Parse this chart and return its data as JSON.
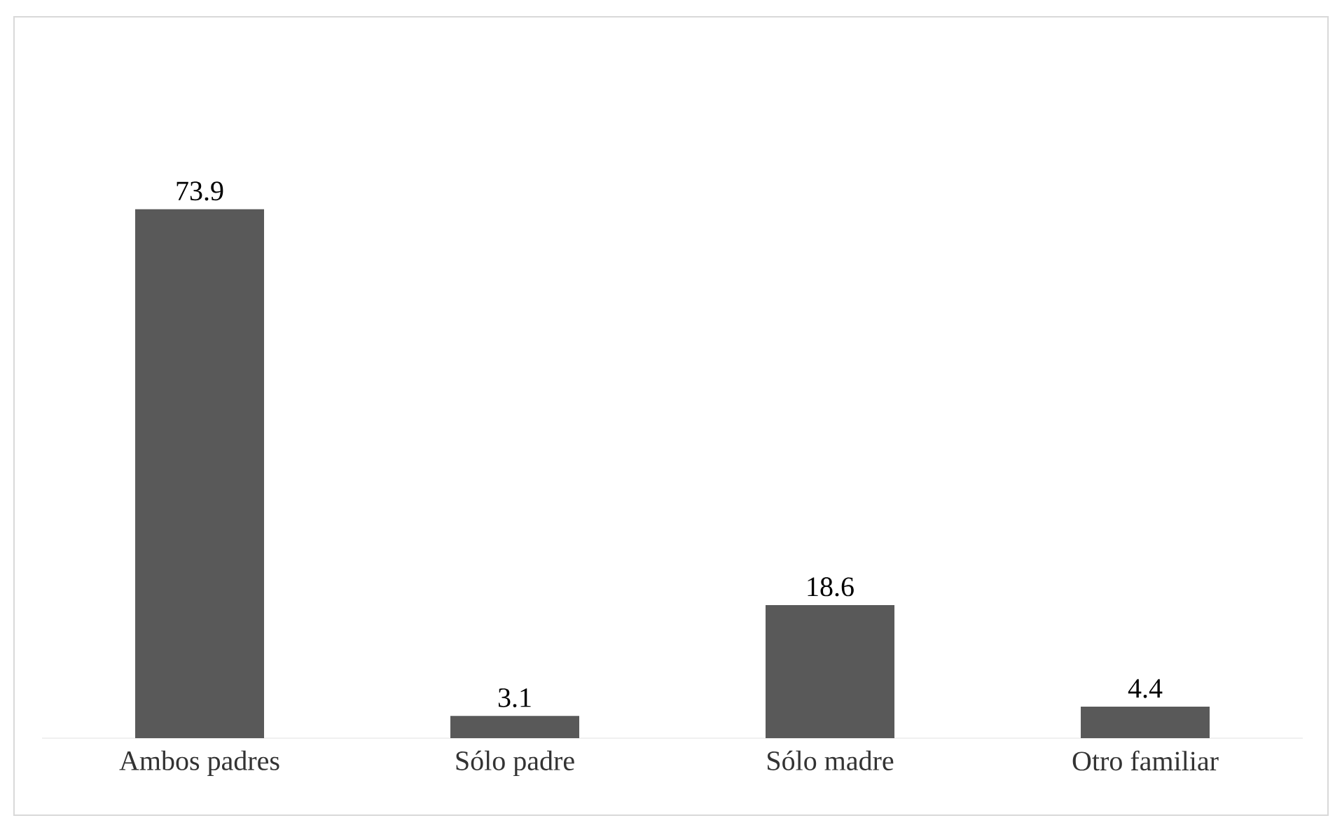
{
  "chart_data": {
    "type": "bar",
    "categories": [
      "Ambos padres",
      "Sólo padre",
      "Sólo madre",
      "Otro familiar"
    ],
    "values": [
      73.9,
      3.1,
      18.6,
      4.4
    ],
    "color": "#595959",
    "data_labels": true
  }
}
